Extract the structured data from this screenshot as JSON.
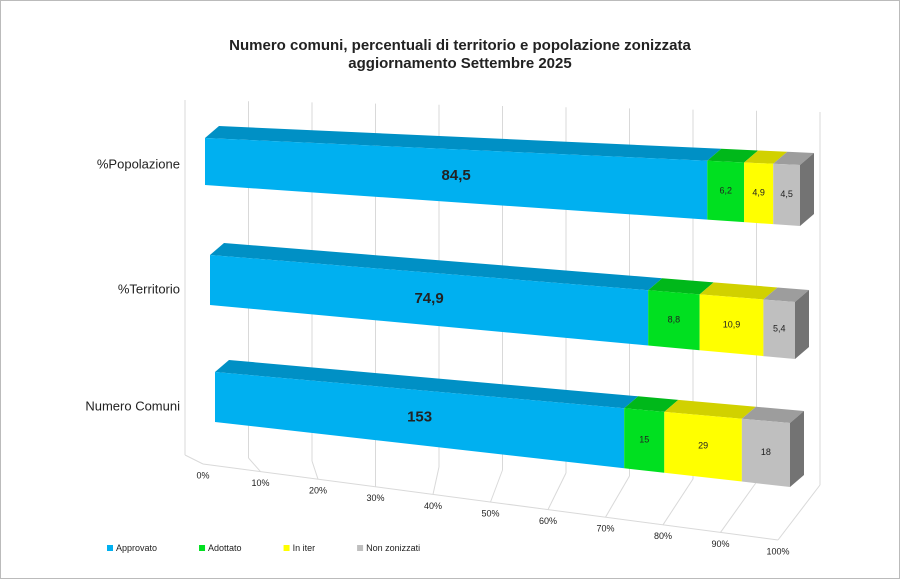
{
  "chart_data": {
    "type": "stacked-bar-3d",
    "stacking": "percent",
    "orientation": "horizontal",
    "title": "Numero comuni, percentuali di territorio e popolazione zonizzata",
    "subtitle": "aggiornamento Settembre 2025",
    "categories": [
      "%Popolazione",
      "%Territorio",
      "Numero Comuni"
    ],
    "series": [
      {
        "name": "Approvato",
        "color": "#00b0f0",
        "values": [
          84.5,
          74.9,
          153
        ],
        "value_labels": [
          "84,5",
          "74,9",
          "153"
        ]
      },
      {
        "name": "Adottato",
        "color": "#00e020",
        "values": [
          6.2,
          8.8,
          15
        ],
        "value_labels": [
          "6,2",
          "8,8",
          "15"
        ]
      },
      {
        "name": "In iter",
        "color": "#ffff00",
        "values": [
          4.9,
          10.9,
          29
        ],
        "value_labels": [
          "4,9",
          "10,9",
          "29"
        ]
      },
      {
        "name": "Non zonizzati",
        "color": "#bfbfbf",
        "values": [
          4.5,
          5.4,
          18
        ],
        "value_labels": [
          "4,5",
          "5,4",
          "18"
        ]
      }
    ],
    "xlim": [
      0,
      100
    ],
    "xticks": [
      {
        "value": 0,
        "label": "0%"
      },
      {
        "value": 10,
        "label": "10%"
      },
      {
        "value": 20,
        "label": "20%"
      },
      {
        "value": 30,
        "label": "30%"
      },
      {
        "value": 40,
        "label": "40%"
      },
      {
        "value": 50,
        "label": "50%"
      },
      {
        "value": 60,
        "label": "60%"
      },
      {
        "value": 70,
        "label": "70%"
      },
      {
        "value": 80,
        "label": "80%"
      },
      {
        "value": 90,
        "label": "90%"
      },
      {
        "value": 100,
        "label": "100%"
      }
    ],
    "grid": true,
    "legend": "bottom-left"
  }
}
